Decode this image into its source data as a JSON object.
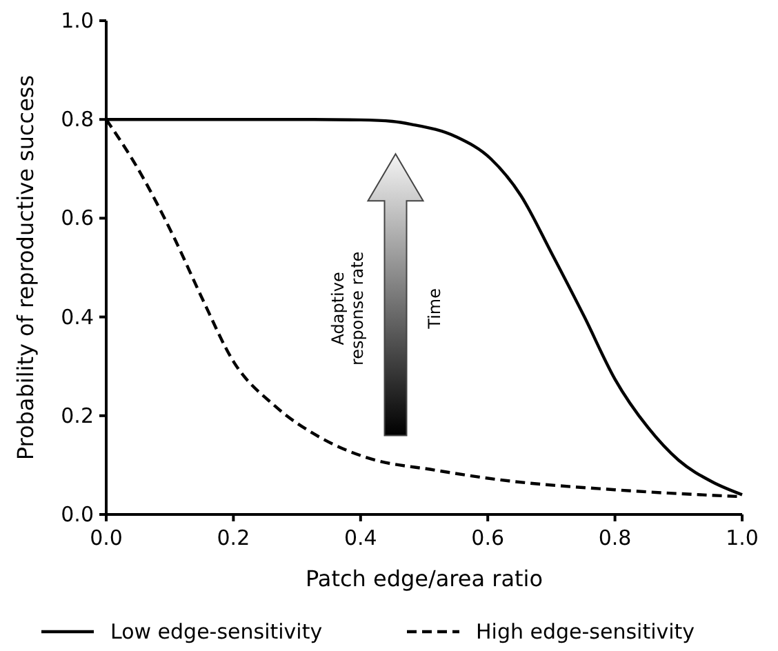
{
  "chart_data": {
    "type": "line",
    "xlabel": "Patch edge/area ratio",
    "ylabel": "Probability of reproductive success",
    "xlim": [
      0,
      1
    ],
    "ylim": [
      0,
      1
    ],
    "xticks": [
      {
        "value": 0,
        "label": "0.0"
      },
      0.2,
      0.4,
      0.6,
      0.8,
      {
        "value": 1,
        "label": "1.0"
      }
    ],
    "yticks": [
      {
        "value": 0,
        "label": "0.0"
      },
      0.2,
      0.4,
      0.6,
      0.8,
      {
        "value": 1,
        "label": "1.0"
      }
    ],
    "legend": "bottom",
    "grid": false,
    "series": [
      {
        "name": "Low edge-sensitivity",
        "color": "#000000",
        "line_style": "solid",
        "x": [
          0,
          0.1,
          0.2,
          0.3,
          0.4,
          0.45,
          0.48,
          0.55,
          0.605,
          0.652,
          0.7,
          0.752,
          0.8,
          0.852,
          0.9,
          0.953,
          1.0
        ],
        "values": [
          0.8,
          0.8,
          0.8,
          0.8,
          0.799,
          0.796,
          0.79,
          0.765,
          0.72,
          0.646,
          0.53,
          0.4,
          0.274,
          0.176,
          0.11,
          0.066,
          0.04
        ]
      },
      {
        "name": "High edge-sensitivity",
        "color": "#000000",
        "line_style": "dashed",
        "x": [
          0,
          0.05,
          0.107,
          0.15,
          0.2,
          0.265,
          0.335,
          0.41,
          0.516,
          0.62,
          0.8,
          1.0
        ],
        "values": [
          0.8,
          0.7,
          0.56,
          0.44,
          0.31,
          0.22,
          0.157,
          0.115,
          0.09,
          0.07,
          0.05,
          0.036
        ]
      }
    ],
    "annotations": [
      "Adaptive response rate",
      "Time"
    ]
  }
}
